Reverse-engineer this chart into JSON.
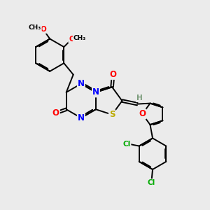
{
  "bg_color": "#ebebeb",
  "bond_color": "#000000",
  "bond_width": 1.4,
  "atom_colors": {
    "N": "#0000ff",
    "O": "#ff0000",
    "S": "#bbaa00",
    "Cl": "#00aa00",
    "C": "#000000",
    "H": "#779977"
  },
  "font_size": 7.5
}
